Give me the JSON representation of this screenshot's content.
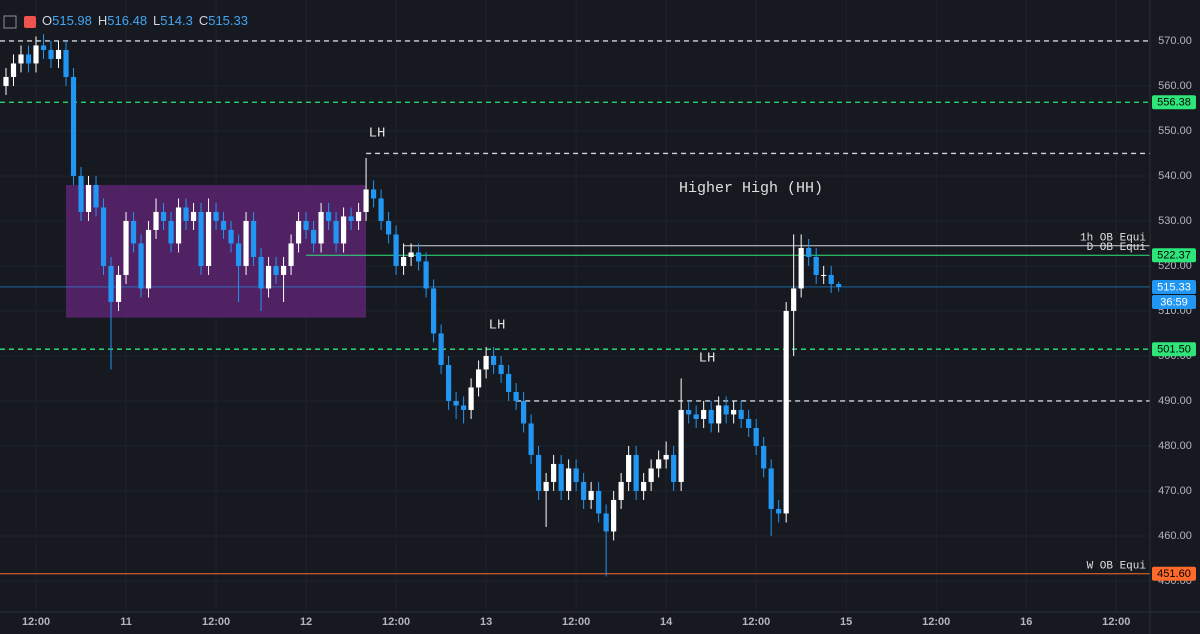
{
  "chart_data": {
    "type": "candlestick",
    "header_labels": [
      "O",
      "H",
      "L",
      "C"
    ],
    "x": [
      8,
      9,
      10,
      11,
      12,
      13,
      14,
      15,
      16,
      17,
      18,
      19,
      20,
      21,
      22,
      23,
      24,
      25,
      26,
      27,
      28,
      29,
      30,
      31,
      32,
      33,
      34,
      35,
      36,
      37,
      38,
      39,
      40,
      41,
      42,
      43,
      44,
      45,
      46,
      47,
      48,
      49,
      50,
      51,
      52,
      53,
      54,
      55,
      56,
      57,
      58,
      59,
      60,
      61,
      62,
      63,
      64,
      65,
      66,
      67,
      68,
      69,
      70,
      71,
      72,
      73,
      74,
      75,
      76,
      77,
      78,
      79,
      80,
      81,
      82,
      83,
      84,
      85,
      86,
      87,
      88,
      89,
      90,
      91,
      92,
      93,
      94,
      95,
      96,
      97,
      98,
      99,
      100,
      101,
      102,
      103,
      104,
      105,
      106,
      107,
      108,
      109,
      110,
      111,
      112,
      113,
      114,
      115,
      116,
      117,
      118,
      119
    ],
    "open": [
      560,
      562,
      565,
      567,
      565,
      569,
      568,
      566,
      568,
      562,
      540,
      532,
      538,
      533,
      520,
      512,
      518,
      530,
      525,
      515,
      528,
      532,
      530,
      525,
      533,
      530,
      532,
      520,
      532,
      530,
      528,
      525,
      520,
      530,
      522,
      515,
      520,
      518,
      520,
      525,
      530,
      528,
      525,
      532,
      530,
      525,
      531,
      530,
      532,
      537,
      535,
      530,
      527,
      520,
      522,
      523,
      521,
      515,
      505,
      498,
      490,
      489,
      488,
      493,
      497,
      500,
      498,
      496,
      492,
      490,
      485,
      478,
      470,
      472,
      476,
      470,
      475,
      472,
      468,
      470,
      465,
      461,
      468,
      472,
      478,
      470,
      472,
      475,
      477,
      478,
      472,
      488,
      487,
      486,
      488,
      485,
      489,
      487,
      488,
      486,
      484,
      480,
      475,
      466,
      465,
      510,
      515,
      524,
      522,
      518,
      518,
      515.98
    ],
    "high": [
      564,
      567,
      569,
      569,
      571,
      571.5,
      570,
      570,
      570,
      564,
      542,
      540,
      540,
      535,
      522,
      520,
      532,
      532,
      527,
      530,
      535,
      534,
      532,
      535,
      535,
      534,
      534,
      535,
      534,
      532,
      530,
      527,
      532,
      532,
      524,
      522,
      522,
      522,
      527,
      532,
      532,
      530,
      534,
      534,
      532,
      533,
      533,
      534,
      544,
      539,
      537,
      532,
      529,
      525,
      525,
      525,
      523,
      517,
      507,
      500,
      492,
      491,
      495,
      499,
      502,
      502,
      500,
      498,
      494,
      492,
      487,
      480,
      474,
      478,
      478,
      477,
      477,
      474,
      472,
      472,
      467,
      470,
      474,
      480,
      480,
      474,
      477,
      479,
      481,
      480,
      495,
      490,
      489,
      490,
      490,
      491,
      491,
      490,
      490,
      488,
      486,
      482,
      477,
      468,
      512,
      527,
      527,
      526,
      524,
      520,
      520,
      516.48
    ],
    "low": [
      558,
      560,
      563,
      563,
      563,
      566,
      564,
      564,
      560,
      538,
      530,
      530,
      531,
      518,
      497,
      510,
      516,
      523,
      513,
      513,
      526,
      528,
      523,
      523,
      528,
      528,
      518,
      518,
      528,
      526,
      523,
      512,
      518,
      520,
      510,
      513,
      516,
      512,
      518,
      523,
      526,
      523,
      523,
      528,
      523,
      523,
      528,
      528,
      530,
      533,
      528,
      525,
      518,
      518,
      520,
      519,
      513,
      503,
      496,
      488,
      486,
      485,
      486,
      491,
      495,
      496,
      494,
      490,
      488,
      483,
      476,
      468,
      462,
      470,
      468,
      468,
      470,
      466,
      466,
      463,
      451,
      459,
      466,
      470,
      468,
      468,
      470,
      473,
      475,
      470,
      470,
      485,
      484,
      484,
      483,
      483,
      485,
      485,
      484,
      482,
      478,
      473,
      460,
      463,
      463,
      500,
      513,
      520,
      516,
      516,
      514,
      514.3
    ],
    "close": [
      562,
      565,
      567,
      565,
      569,
      568,
      566,
      568,
      562,
      540,
      532,
      538,
      533,
      520,
      512,
      518,
      530,
      525,
      515,
      528,
      532,
      530,
      525,
      533,
      530,
      532,
      520,
      532,
      530,
      528,
      525,
      520,
      530,
      522,
      515,
      520,
      518,
      520,
      525,
      530,
      528,
      525,
      532,
      530,
      525,
      531,
      530,
      532,
      537,
      535,
      530,
      527,
      520,
      522,
      523,
      521,
      515,
      505,
      498,
      490,
      489,
      488,
      493,
      497,
      500,
      498,
      496,
      492,
      490,
      485,
      478,
      470,
      472,
      476,
      470,
      475,
      472,
      468,
      470,
      465,
      461,
      468,
      472,
      478,
      470,
      472,
      475,
      477,
      478,
      472,
      488,
      487,
      486,
      488,
      485,
      489,
      487,
      488,
      486,
      484,
      480,
      475,
      466,
      465,
      510,
      515,
      524,
      522,
      518,
      518,
      515.98,
      515.33
    ],
    "up_color": "#ffffff",
    "down_color": "#2196f3",
    "xlim": [
      7.2,
      160.5
    ],
    "ylim": [
      443.1,
      579.1
    ],
    "yticks": [
      {
        "value": 450,
        "label": "450.00"
      },
      {
        "value": 460,
        "label": "460.00"
      },
      {
        "value": 470,
        "label": "470.00"
      },
      {
        "value": 480,
        "label": "480.00"
      },
      {
        "value": 490,
        "label": "490.00"
      },
      {
        "value": 500,
        "label": "500.00"
      },
      {
        "value": 510,
        "label": "510.00"
      },
      {
        "value": 520,
        "label": "520.00"
      },
      {
        "value": 530,
        "label": "530.00"
      },
      {
        "value": 540,
        "label": "540.00"
      },
      {
        "value": 550,
        "label": "550.00"
      },
      {
        "value": 560,
        "label": "560.00"
      },
      {
        "value": 570,
        "label": "570.00"
      }
    ],
    "xticks": [
      {
        "value": 12,
        "label": "12:00"
      },
      {
        "value": 24,
        "label": "11"
      },
      {
        "value": 36,
        "label": "12:00"
      },
      {
        "value": 48,
        "label": "12"
      },
      {
        "value": 60,
        "label": "12:00"
      },
      {
        "value": 72,
        "label": "13"
      },
      {
        "value": 84,
        "label": "12:00"
      },
      {
        "value": 96,
        "label": "14"
      },
      {
        "value": 108,
        "label": "12:00"
      },
      {
        "value": 120,
        "label": "15"
      },
      {
        "value": 132,
        "label": "12:00"
      },
      {
        "value": 144,
        "label": "16"
      },
      {
        "value": 156,
        "label": "12:00"
      }
    ],
    "grid": true,
    "zone": {
      "x": [
        16,
        56
      ],
      "y": [
        508.5,
        538
      ],
      "color": "#5a2570"
    },
    "levels": [
      {
        "value": 570,
        "color": "#d1d4dc",
        "style": "dashed"
      },
      {
        "value": 556.38,
        "color": "#2ee57a",
        "style": "dashed",
        "tag": true
      },
      {
        "value": 545,
        "color": "#d1d4dc",
        "style": "dashed",
        "x_start": 56
      },
      {
        "value": 524.5,
        "color": "#d1d4dc",
        "style": "solid",
        "x_start": 61,
        "text": "1h OB Equi"
      },
      {
        "value": 522.37,
        "color": "#2ee57a",
        "style": "solid",
        "x_start": 48,
        "text": "D OB Equi",
        "tag": true
      },
      {
        "value": 501.5,
        "label": "501.50",
        "color": "#2ee57a",
        "style": "dashed",
        "tag": true
      },
      {
        "value": 490,
        "color": "#d1d4dc",
        "style": "dashed",
        "x_start": 76
      },
      {
        "value": 451.6,
        "label": "451.60",
        "color": "#ff6a2b",
        "style": "solid",
        "text": "W OB Equi",
        "tag": true
      }
    ],
    "price_color": "#2196f3",
    "countdown": "36:59",
    "annotations": [
      "LH",
      "LH",
      "LH",
      "Higher High (HH)"
    ]
  }
}
